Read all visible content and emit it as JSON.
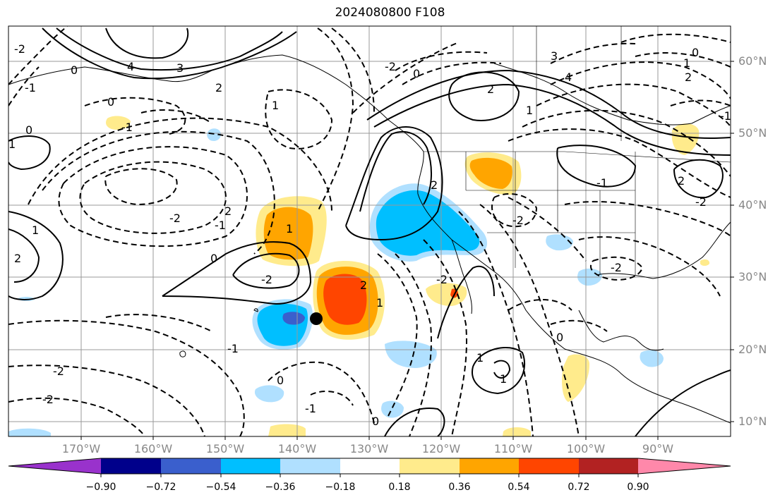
{
  "title": "2024080800 F108",
  "axes": {
    "lat_labels": [
      "60°N",
      "50°N",
      "40°N",
      "30°N",
      "20°N",
      "10°N"
    ],
    "lon_labels": [
      "170°W",
      "160°W",
      "150°W",
      "140°W",
      "130°W",
      "120°W",
      "110°W",
      "100°W",
      "90°W"
    ]
  },
  "colorbar": {
    "ticks": [
      "−0.90",
      "−0.72",
      "−0.54",
      "−0.36",
      "−0.18",
      "0.18",
      "0.36",
      "0.54",
      "0.72",
      "0.90"
    ],
    "colors": [
      "#9932cc",
      "#00008b",
      "#3a5fcd",
      "#00bfff",
      "#b0e0ff",
      "#ffffff",
      "#ffeb8c",
      "#ffa500",
      "#ff4500",
      "#b22222",
      "#ff88aa"
    ]
  },
  "contour_labels": [
    "4",
    "3",
    "2",
    "1",
    "0",
    "-1",
    "-2",
    "2",
    "1",
    "0",
    "-1",
    "-2",
    "2",
    "1",
    "-2",
    "-2",
    "2",
    "1",
    "0",
    "-1",
    "-2",
    "-2",
    "2",
    "-1",
    "-2",
    "0",
    "1",
    "2",
    "-2",
    "1",
    "0",
    "-1",
    "-2",
    "0",
    "-1",
    "0",
    "1",
    "3",
    "4",
    "2",
    "1",
    "0",
    "-1",
    "2",
    "1",
    "-2",
    "0"
  ],
  "marker": {
    "label": "storm-center",
    "lon": -137,
    "lat": 24
  }
}
